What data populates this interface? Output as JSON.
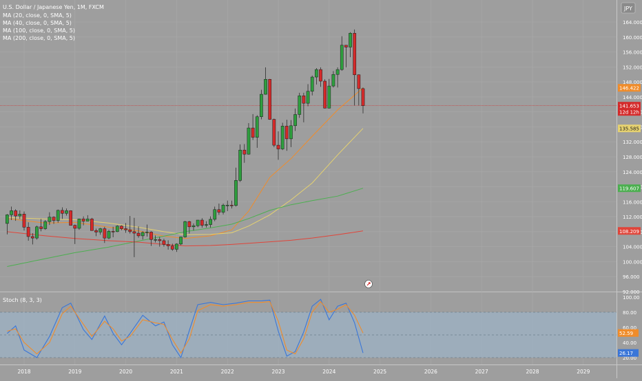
{
  "header": {
    "title": "U.S. Dollar / Japanese Yen, 1M, FXCM",
    "indicators": [
      "MA (20, close, 0, SMA, 5)",
      "MA (40, close, 0, SMA, 5)",
      "MA (100, close, 0, SMA, 5)",
      "MA (200, close, 0, SMA, 5)"
    ],
    "currency_button": "JPY"
  },
  "colors": {
    "background": "#9e9e9e",
    "up": "#2e9e3e",
    "down": "#d42a2a",
    "ma20": "#f08c2a",
    "ma40": "#e6d270",
    "ma100": "#4caf50",
    "ma200": "#e0453a",
    "stoch_k": "#3a76d8",
    "stoch_d": "#f08c2a",
    "stoch_band": "#9cb2c4"
  },
  "chart_data": [
    {
      "type": "candlestick",
      "x": [
        "2017-09",
        "2017-10",
        "2017-11",
        "2017-12",
        "2018-01",
        "2018-02",
        "2018-03",
        "2018-04",
        "2018-05",
        "2018-06",
        "2018-07",
        "2018-08",
        "2018-09",
        "2018-10",
        "2018-11",
        "2018-12",
        "2019-01",
        "2019-02",
        "2019-03",
        "2019-04",
        "2019-05",
        "2019-06",
        "2019-07",
        "2019-08",
        "2019-09",
        "2019-10",
        "2019-11",
        "2019-12",
        "2020-01",
        "2020-02",
        "2020-03",
        "2020-04",
        "2020-05",
        "2020-06",
        "2020-07",
        "2020-08",
        "2020-09",
        "2020-10",
        "2020-11",
        "2020-12",
        "2021-01",
        "2021-02",
        "2021-03",
        "2021-04",
        "2021-05",
        "2021-06",
        "2021-07",
        "2021-08",
        "2021-09",
        "2021-10",
        "2021-11",
        "2021-12",
        "2022-01",
        "2022-02",
        "2022-03",
        "2022-04",
        "2022-05",
        "2022-06",
        "2022-07",
        "2022-08",
        "2022-09",
        "2022-10",
        "2022-11",
        "2022-12",
        "2023-01",
        "2023-02",
        "2023-03",
        "2023-04",
        "2023-05",
        "2023-06",
        "2023-07",
        "2023-08",
        "2023-09",
        "2023-10",
        "2023-11",
        "2023-12",
        "2024-01",
        "2024-02",
        "2024-03",
        "2024-04",
        "2024-05",
        "2024-06",
        "2024-07",
        "2024-08",
        "2024-09"
      ],
      "open": [
        110.2,
        112.5,
        113.6,
        112.2,
        112.7,
        109.2,
        106.7,
        106.3,
        109.3,
        108.8,
        110.7,
        111.9,
        111.0,
        113.7,
        112.9,
        113.6,
        109.7,
        108.9,
        111.4,
        110.8,
        111.4,
        108.3,
        107.9,
        108.8,
        106.3,
        108.1,
        108.0,
        109.5,
        108.8,
        108.5,
        108.0,
        107.6,
        106.9,
        107.8,
        107.9,
        105.9,
        105.9,
        105.6,
        104.6,
        104.2,
        103.3,
        104.7,
        106.6,
        110.7,
        109.3,
        109.6,
        111.1,
        109.7,
        109.9,
        111.3,
        113.9,
        113.2,
        115.1,
        115.1,
        115.0,
        121.7,
        129.8,
        128.7,
        135.7,
        133.2,
        138.7,
        144.7,
        148.7,
        138.0,
        131.1,
        130.1,
        136.2,
        132.8,
        136.3,
        139.3,
        144.3,
        142.3,
        145.5,
        149.3,
        151.3,
        148.2,
        141.0,
        146.9,
        150.0,
        151.3,
        157.8,
        157.3,
        161.0,
        149.9,
        146.2
      ],
      "high": [
        112.7,
        114.7,
        114.0,
        113.7,
        113.4,
        110.5,
        107.6,
        109.6,
        111.4,
        111.1,
        113.2,
        112.1,
        113.9,
        114.5,
        114.2,
        113.7,
        109.9,
        111.5,
        112.1,
        112.4,
        111.7,
        108.8,
        109.0,
        109.3,
        108.5,
        109.3,
        109.7,
        109.7,
        110.3,
        112.2,
        111.7,
        109.4,
        108.1,
        109.9,
        108.1,
        107.0,
        106.6,
        106.1,
        105.7,
        104.8,
        104.9,
        106.7,
        110.9,
        110.9,
        110.2,
        111.1,
        111.6,
        110.8,
        112.1,
        114.7,
        115.5,
        115.5,
        116.3,
        116.3,
        125.1,
        131.3,
        131.4,
        137.0,
        139.4,
        139.1,
        145.9,
        151.9,
        148.8,
        138.2,
        134.8,
        137.1,
        137.9,
        137.8,
        140.9,
        145.1,
        145.1,
        147.4,
        149.7,
        151.7,
        151.9,
        148.7,
        148.8,
        150.9,
        151.9,
        160.2,
        157.7,
        161.3,
        162.0,
        150.0,
        146.5
      ],
      "low": [
        107.3,
        111.1,
        110.9,
        111.4,
        108.3,
        105.6,
        104.6,
        105.9,
        108.1,
        108.5,
        109.8,
        110.1,
        110.4,
        111.4,
        112.3,
        109.9,
        104.7,
        108.5,
        109.7,
        110.8,
        108.3,
        106.8,
        107.2,
        105.0,
        106.0,
        106.5,
        107.9,
        108.4,
        107.7,
        107.5,
        101.2,
        106.4,
        105.9,
        106.7,
        104.2,
        105.1,
        104.0,
        104.0,
        103.2,
        102.9,
        102.6,
        104.4,
        106.4,
        107.5,
        108.3,
        109.2,
        109.1,
        109.1,
        109.1,
        110.8,
        112.5,
        112.6,
        113.5,
        114.2,
        114.7,
        121.3,
        126.4,
        128.6,
        132.5,
        130.4,
        138.0,
        144.6,
        137.9,
        130.6,
        127.2,
        129.8,
        129.6,
        130.6,
        134.9,
        138.4,
        137.2,
        141.5,
        144.4,
        147.3,
        146.7,
        140.9,
        140.9,
        146.5,
        146.5,
        151.0,
        151.9,
        154.6,
        141.7,
        141.7,
        139.6
      ],
      "close": [
        112.5,
        113.6,
        112.2,
        112.7,
        109.2,
        106.7,
        106.3,
        109.3,
        108.8,
        110.7,
        111.9,
        111.0,
        113.7,
        112.9,
        113.6,
        109.7,
        108.9,
        111.4,
        110.8,
        111.4,
        108.3,
        107.9,
        108.8,
        106.3,
        108.1,
        108.0,
        109.5,
        108.8,
        108.5,
        108.0,
        107.6,
        106.9,
        107.8,
        107.9,
        105.9,
        105.9,
        105.6,
        104.6,
        104.2,
        103.3,
        104.7,
        106.6,
        110.7,
        109.3,
        109.6,
        111.1,
        109.7,
        109.9,
        111.3,
        113.9,
        113.2,
        115.1,
        115.1,
        115.0,
        121.7,
        129.8,
        128.7,
        135.7,
        133.2,
        138.7,
        144.7,
        148.7,
        138.0,
        131.1,
        130.1,
        136.2,
        132.8,
        136.3,
        139.3,
        144.3,
        142.3,
        145.5,
        149.3,
        151.3,
        148.2,
        141.0,
        146.9,
        150.0,
        151.3,
        157.8,
        157.3,
        161.0,
        149.9,
        146.2,
        141.653
      ],
      "ylim": [
        92,
        166
      ],
      "yticks": [
        92,
        96,
        100,
        104,
        108,
        112,
        116,
        120,
        124,
        128,
        132,
        136,
        140,
        144,
        148,
        152,
        156,
        160,
        164
      ],
      "x_ticks": [
        "2018",
        "2019",
        "2020",
        "2021",
        "2022",
        "2023",
        "2024",
        "2025",
        "2026",
        "2027",
        "2028",
        "2029"
      ],
      "last_price_label": "141.653",
      "countdown_label": "12d 12h",
      "price_line": 141.653,
      "ma_labels": [
        {
          "name": "MA (20, close, 0, SMA, 5)",
          "value": "146.422",
          "color": "#f08c2a"
        },
        {
          "name": "MA (40, close, 0, SMA, 5)",
          "value": "135.585",
          "color": "#e6d270"
        },
        {
          "name": "MA (100, close, 0, SMA, 5)",
          "value": "119.607",
          "color": "#4caf50"
        },
        {
          "name": "MA (200, close, 0, SMA, 5)",
          "value": "108.209",
          "color": "#e0453a"
        }
      ],
      "ma_series": [
        {
          "name": "MA (20, close, 0, SMA, 5)",
          "color": "#f08c2a",
          "points": [
            [
              "2017-09",
              111.5
            ],
            [
              "2018-06",
              110.3
            ],
            [
              "2019-01",
              110.5
            ],
            [
              "2019-09",
              109.2
            ],
            [
              "2020-04",
              108.2
            ],
            [
              "2020-10",
              106.8
            ],
            [
              "2021-03",
              106.2
            ],
            [
              "2021-09",
              106.9
            ],
            [
              "2022-02",
              108.5
            ],
            [
              "2022-06",
              113.5
            ],
            [
              "2022-11",
              122.5
            ],
            [
              "2023-04",
              127.5
            ],
            [
              "2023-09",
              133.5
            ],
            [
              "2024-03",
              140.5
            ],
            [
              "2024-09",
              146.422
            ]
          ]
        },
        {
          "name": "MA (40, close, 0, SMA, 5)",
          "color": "#e6d270",
          "points": [
            [
              "2017-09",
              111.8
            ],
            [
              "2018-06",
              111.4
            ],
            [
              "2019-01",
              111.2
            ],
            [
              "2019-09",
              110.3
            ],
            [
              "2020-04",
              109.2
            ],
            [
              "2020-10",
              108.0
            ],
            [
              "2021-03",
              107.2
            ],
            [
              "2021-09",
              107.3
            ],
            [
              "2022-02",
              107.7
            ],
            [
              "2022-06",
              109.5
            ],
            [
              "2022-11",
              112.5
            ],
            [
              "2023-04",
              116.5
            ],
            [
              "2023-09",
              121.0
            ],
            [
              "2024-03",
              128.5
            ],
            [
              "2024-09",
              135.585
            ]
          ]
        },
        {
          "name": "MA (100, close, 0, SMA, 5)",
          "color": "#4caf50",
          "points": [
            [
              "2017-09",
              98.7
            ],
            [
              "2018-06",
              100.8
            ],
            [
              "2019-01",
              102.4
            ],
            [
              "2019-09",
              103.9
            ],
            [
              "2020-04",
              105.5
            ],
            [
              "2020-10",
              106.8
            ],
            [
              "2021-03",
              108.0
            ],
            [
              "2021-09",
              109.0
            ],
            [
              "2022-02",
              110.0
            ],
            [
              "2022-06",
              111.5
            ],
            [
              "2022-11",
              113.7
            ],
            [
              "2023-04",
              115.2
            ],
            [
              "2023-09",
              116.3
            ],
            [
              "2024-03",
              117.5
            ],
            [
              "2024-09",
              119.607
            ]
          ]
        },
        {
          "name": "MA (200, close, 0, SMA, 5)",
          "color": "#e0453a",
          "points": [
            [
              "2017-09",
              108.0
            ],
            [
              "2018-06",
              106.9
            ],
            [
              "2019-01",
              106.2
            ],
            [
              "2019-09",
              105.6
            ],
            [
              "2020-04",
              105.2
            ],
            [
              "2020-10",
              104.6
            ],
            [
              "2021-03",
              104.2
            ],
            [
              "2021-09",
              104.3
            ],
            [
              "2022-02",
              104.6
            ],
            [
              "2022-06",
              104.9
            ],
            [
              "2022-11",
              105.3
            ],
            [
              "2023-04",
              105.7
            ],
            [
              "2023-09",
              106.3
            ],
            [
              "2024-03",
              107.2
            ],
            [
              "2024-09",
              108.209
            ]
          ]
        }
      ]
    },
    {
      "type": "line",
      "title": "Stoch (8, 3, 3)",
      "ylim": [
        17,
        100
      ],
      "yticks": [
        20,
        40,
        60,
        80,
        100
      ],
      "band": [
        20,
        80
      ],
      "mid_line": 50,
      "k_label": "26.17",
      "d_label": "52.59",
      "series": [
        {
          "name": "%K",
          "color": "#3a76d8",
          "points": [
            [
              "2017-09",
              52
            ],
            [
              "2017-11",
              62
            ],
            [
              "2018-01",
              30
            ],
            [
              "2018-04",
              20
            ],
            [
              "2018-07",
              48
            ],
            [
              "2018-10",
              86
            ],
            [
              "2018-12",
              92
            ],
            [
              "2019-03",
              57
            ],
            [
              "2019-05",
              44
            ],
            [
              "2019-08",
              75
            ],
            [
              "2019-10",
              52
            ],
            [
              "2019-12",
              37
            ],
            [
              "2020-02",
              52
            ],
            [
              "2020-05",
              76
            ],
            [
              "2020-08",
              62
            ],
            [
              "2020-10",
              67
            ],
            [
              "2020-12",
              37
            ],
            [
              "2021-02",
              20
            ],
            [
              "2021-04",
              56
            ],
            [
              "2021-06",
              90
            ],
            [
              "2021-09",
              93
            ],
            [
              "2021-12",
              90
            ],
            [
              "2022-03",
              92
            ],
            [
              "2022-06",
              95
            ],
            [
              "2022-09",
              95
            ],
            [
              "2022-11",
              96
            ],
            [
              "2023-01",
              55
            ],
            [
              "2023-03",
              22
            ],
            [
              "2023-05",
              28
            ],
            [
              "2023-07",
              54
            ],
            [
              "2023-09",
              88
            ],
            [
              "2023-11",
              97
            ],
            [
              "2024-01",
              70
            ],
            [
              "2024-03",
              88
            ],
            [
              "2024-05",
              92
            ],
            [
              "2024-07",
              66
            ],
            [
              "2024-09",
              26.17
            ]
          ]
        },
        {
          "name": "%D",
          "color": "#f08c2a",
          "points": [
            [
              "2017-09",
              55
            ],
            [
              "2017-11",
              58
            ],
            [
              "2018-01",
              40
            ],
            [
              "2018-04",
              25
            ],
            [
              "2018-07",
              40
            ],
            [
              "2018-10",
              78
            ],
            [
              "2018-12",
              88
            ],
            [
              "2019-03",
              64
            ],
            [
              "2019-05",
              48
            ],
            [
              "2019-08",
              68
            ],
            [
              "2019-10",
              58
            ],
            [
              "2019-12",
              42
            ],
            [
              "2020-02",
              48
            ],
            [
              "2020-05",
              70
            ],
            [
              "2020-08",
              66
            ],
            [
              "2020-10",
              64
            ],
            [
              "2020-12",
              44
            ],
            [
              "2021-02",
              26
            ],
            [
              "2021-04",
              45
            ],
            [
              "2021-06",
              82
            ],
            [
              "2021-09",
              90
            ],
            [
              "2021-12",
              88
            ],
            [
              "2022-03",
              90
            ],
            [
              "2022-06",
              93
            ],
            [
              "2022-09",
              93
            ],
            [
              "2022-11",
              94
            ],
            [
              "2023-01",
              68
            ],
            [
              "2023-03",
              30
            ],
            [
              "2023-05",
              25
            ],
            [
              "2023-07",
              45
            ],
            [
              "2023-09",
              80
            ],
            [
              "2023-11",
              94
            ],
            [
              "2024-01",
              80
            ],
            [
              "2024-03",
              84
            ],
            [
              "2024-05",
              90
            ],
            [
              "2024-07",
              76
            ],
            [
              "2024-09",
              52.59
            ]
          ]
        }
      ]
    }
  ]
}
